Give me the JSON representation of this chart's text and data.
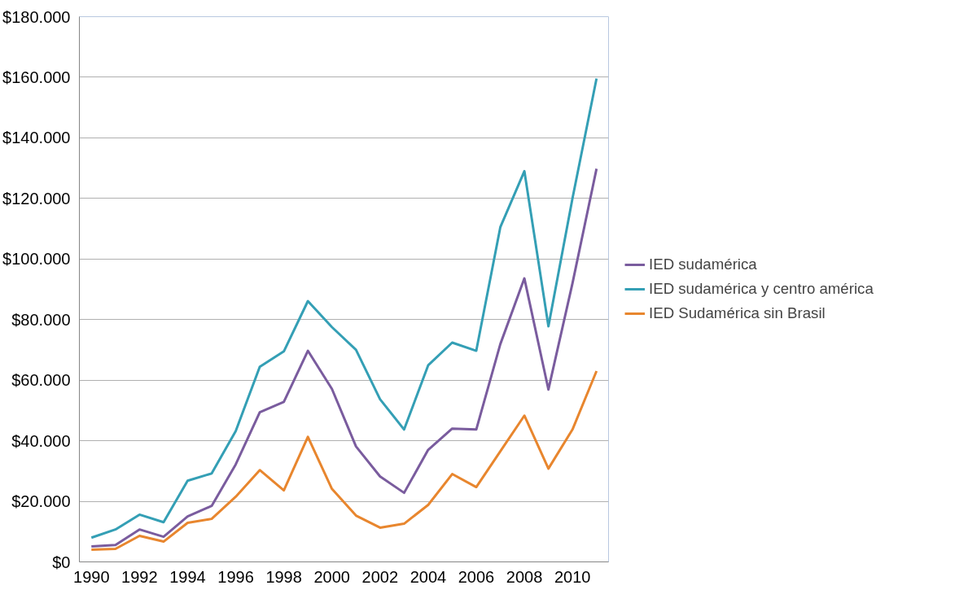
{
  "chart_data": {
    "type": "line",
    "x": [
      1990,
      1991,
      1992,
      1993,
      1994,
      1995,
      1996,
      1997,
      1998,
      1999,
      2000,
      2001,
      2002,
      2003,
      2004,
      2005,
      2006,
      2007,
      2008,
      2009,
      2010,
      2011
    ],
    "series": [
      {
        "name": "IED sudamérica",
        "color": "#7a5c9e",
        "values": [
          5100,
          5600,
          10700,
          8300,
          15000,
          18500,
          32200,
          49400,
          52800,
          69700,
          57100,
          38100,
          28200,
          22800,
          37000,
          44000,
          43700,
          71900,
          93600,
          56900,
          92000,
          129800
        ]
      },
      {
        "name": "IED sudamérica y centro américa",
        "color": "#349fb5",
        "values": [
          8000,
          10700,
          15600,
          13100,
          26800,
          29200,
          43200,
          64400,
          69500,
          86100,
          77500,
          70000,
          53700,
          43700,
          64900,
          72400,
          69700,
          110500,
          129000,
          77800,
          120000,
          159600
        ]
      },
      {
        "name": "IED Sudamérica sin Brasil",
        "color": "#e8862e",
        "values": [
          4000,
          4300,
          8600,
          6700,
          12900,
          14200,
          21500,
          30300,
          23600,
          41300,
          24100,
          15300,
          11300,
          12600,
          18800,
          29000,
          24700,
          36500,
          48300,
          30800,
          43700,
          63000
        ]
      }
    ],
    "xlim": [
      1989.5,
      2011.5
    ],
    "xticks": [
      1990,
      1992,
      1994,
      1996,
      1998,
      2000,
      2002,
      2004,
      2006,
      2008,
      2010
    ],
    "ylim": [
      0,
      180000
    ],
    "yticks": [
      {
        "value": 0,
        "label": "$0"
      },
      {
        "value": 20000,
        "label": "$20.000"
      },
      {
        "value": 40000,
        "label": "$40.000"
      },
      {
        "value": 60000,
        "label": "$60.000"
      },
      {
        "value": 80000,
        "label": "$80.000"
      },
      {
        "value": 100000,
        "label": "$100.000"
      },
      {
        "value": 120000,
        "label": "$120.000"
      },
      {
        "value": 140000,
        "label": "$140.000"
      },
      {
        "value": 160000,
        "label": "$160.000"
      },
      {
        "value": 180000,
        "label": "$180.000"
      }
    ],
    "grid": "y",
    "legend": "right",
    "marker": "none",
    "line_style": "solid"
  }
}
